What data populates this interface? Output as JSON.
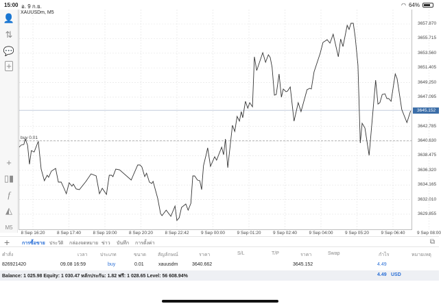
{
  "status": {
    "time": "15:00",
    "date": "อ. 9 ก.ย.",
    "battery": "64%",
    "battery_level": 0.64
  },
  "sidebar": {
    "period": "M5"
  },
  "chart": {
    "symbol": "XAUUSDm, M5",
    "current_price": "3645.152",
    "buy_label": "buy 0.01"
  },
  "chart_data": {
    "type": "line",
    "title": "XAUUSDm, M5",
    "x_unit": "minutes since 8 Sep 16:20",
    "ylim": [
      3628.5,
      3659.4
    ],
    "grid": true,
    "y_ticks": [
      "3657.870",
      "3655.715",
      "3653.560",
      "3651.405",
      "3649.250",
      "3647.095",
      "3642.785",
      "3640.630",
      "3638.475",
      "3636.320",
      "3634.165",
      "3632.010",
      "3629.855"
    ],
    "x_ticks": [
      "8 Sep 16:20",
      "8 Sep 17:40",
      "8 Sep 19:00",
      "8 Sep 20:20",
      "8 Sep 22:42",
      "9 Sep 00:00",
      "9 Sep 01:20",
      "9 Sep 02:40",
      "9 Sep 04:00",
      "9 Sep 05:20",
      "9 Sep 06:40",
      "9 Sep 08:00"
    ],
    "bid_line": 3645.152,
    "order_line": 3640.662,
    "points": [
      [
        0,
        3639.73
      ],
      [
        4,
        3640.03
      ],
      [
        10,
        3640.13
      ],
      [
        13,
        3640.94
      ],
      [
        18,
        3640.03
      ],
      [
        22,
        3637.21
      ],
      [
        26,
        3639.22
      ],
      [
        32,
        3639.02
      ],
      [
        40,
        3640.43
      ],
      [
        41,
        3640.53
      ],
      [
        47,
        3636.5
      ],
      [
        54,
        3634.79
      ],
      [
        60,
        3635.59
      ],
      [
        63,
        3635.29
      ],
      [
        69,
        3636.2
      ],
      [
        78,
        3636.6
      ],
      [
        84,
        3634.59
      ],
      [
        90,
        3634.59
      ],
      [
        96,
        3633.68
      ],
      [
        101,
        3632.87
      ],
      [
        107,
        3634.48
      ],
      [
        113,
        3633.98
      ],
      [
        116,
        3634.28
      ],
      [
        122,
        3633.58
      ],
      [
        129,
        3633.48
      ],
      [
        143,
        3634.69
      ],
      [
        154,
        3635.79
      ],
      [
        165,
        3635.49
      ],
      [
        172,
        3632.87
      ],
      [
        178,
        3633.68
      ],
      [
        187,
        3632.77
      ],
      [
        193,
        3635.59
      ],
      [
        198,
        3635.59
      ],
      [
        201,
        3635.39
      ],
      [
        207,
        3636.5
      ],
      [
        215,
        3636.4
      ],
      [
        240,
        3634.89
      ],
      [
        245,
        3635.69
      ],
      [
        254,
        3637.11
      ],
      [
        259,
        3637.11
      ],
      [
        263,
        3636.8
      ],
      [
        269,
        3635.39
      ],
      [
        273,
        3635.9
      ],
      [
        279,
        3634.59
      ],
      [
        284,
        3634.38
      ],
      [
        287,
        3634.69
      ],
      [
        297,
        3632.17
      ],
      [
        303,
        3629.95
      ],
      [
        306,
        3629.65
      ],
      [
        315,
        3630.45
      ],
      [
        325,
        3629.55
      ],
      [
        334,
        3631.06
      ],
      [
        338,
        3628.94
      ],
      [
        343,
        3629.34
      ],
      [
        348,
        3630.86
      ],
      [
        357,
        3631.36
      ],
      [
        362,
        3630.45
      ],
      [
        368,
        3631.46
      ],
      [
        372,
        3635.49
      ],
      [
        376,
        3635.49
      ],
      [
        382,
        3634.89
      ],
      [
        387,
        3634.79
      ],
      [
        391,
        3633.48
      ],
      [
        395,
        3637.0
      ],
      [
        401,
        3638.72
      ],
      [
        404,
        3639.63
      ],
      [
        410,
        3636.9
      ],
      [
        419,
        3638.31
      ],
      [
        423,
        3637.81
      ],
      [
        434,
        3639.73
      ],
      [
        438,
        3638.62
      ],
      [
        442,
        3640.94
      ],
      [
        447,
        3636.7
      ],
      [
        457,
        3642.95
      ],
      [
        462,
        3642.04
      ],
      [
        467,
        3644.26
      ],
      [
        472,
        3643.56
      ],
      [
        476,
        3644.97
      ],
      [
        479,
        3644.06
      ],
      [
        485,
        3646.48
      ],
      [
        490,
        3645.47
      ],
      [
        494,
        3646.28
      ],
      [
        500,
        3645.67
      ],
      [
        504,
        3653.03
      ],
      [
        509,
        3651.02
      ],
      [
        522,
        3653.64
      ],
      [
        528,
        3652.23
      ],
      [
        534,
        3653.33
      ],
      [
        538,
        3652.93
      ],
      [
        542,
        3651.52
      ],
      [
        547,
        3647.39
      ],
      [
        551,
        3647.49
      ],
      [
        557,
        3650.51
      ],
      [
        562,
        3647.08
      ],
      [
        566,
        3648.29
      ],
      [
        572,
        3647.89
      ],
      [
        575,
        3647.99
      ],
      [
        581,
        3648.6
      ],
      [
        589,
        3643.56
      ],
      [
        598,
        3646.28
      ],
      [
        604,
        3644.97
      ],
      [
        617,
        3648.19
      ],
      [
        623,
        3648.39
      ],
      [
        626,
        3648.29
      ],
      [
        632,
        3650.81
      ],
      [
        645,
        3653.54
      ],
      [
        651,
        3655.15
      ],
      [
        660,
        3655.55
      ],
      [
        666,
        3655.05
      ],
      [
        673,
        3656.36
      ],
      [
        684,
        3653.03
      ],
      [
        689,
        3655.65
      ],
      [
        694,
        3654.54
      ],
      [
        703,
        3657.67
      ],
      [
        707,
        3657.06
      ],
      [
        711,
        3657.97
      ],
      [
        716,
        3657.97
      ],
      [
        720,
        3656.06
      ],
      [
        726,
        3651.82
      ],
      [
        731,
        3640.33
      ],
      [
        735,
        3643.25
      ],
      [
        741,
        3642.55
      ],
      [
        750,
        3638.52
      ],
      [
        764,
        3649.6
      ],
      [
        769,
        3646.08
      ],
      [
        773,
        3646.28
      ],
      [
        778,
        3647.49
      ],
      [
        784,
        3647.59
      ],
      [
        788,
        3646.88
      ],
      [
        792,
        3646.88
      ],
      [
        797,
        3646.48
      ],
      [
        806,
        3650.51
      ],
      [
        810,
        3649.81
      ],
      [
        820,
        3645.27
      ],
      [
        831,
        3643.35
      ],
      [
        839,
        3645.07
      ]
    ]
  },
  "tabs": [
    "การซื้อขาย",
    "ประวัติ",
    "กล่องจดหมาย",
    "ข่าว",
    "บันทึก",
    "การตั้งค่า"
  ],
  "table": {
    "headers": [
      "คำสั่ง",
      "เวลา",
      "ประเภท",
      "ขนาด",
      "สัญลักษณ์",
      "ราคา",
      "S/L",
      "T/P",
      "ราคา",
      "Swap",
      "กำไร",
      "หมายเหตุ"
    ],
    "row": {
      "order": "826921420",
      "time": "09.08 16:59",
      "type": "buy",
      "volume": "0.01",
      "symbol": "xauusdm",
      "open_price": "3640.662",
      "sl": "",
      "tp": "",
      "price": "3645.152",
      "swap": "",
      "profit": "4.49",
      "comment": ""
    }
  },
  "balance": {
    "text": "Balance: 1 025.98 Equity: 1 030.47 หลักประกัน: 1.82 ฟรี: 1 028.65 Level: 56 608.94%",
    "profit": "4.49",
    "currency": "USD"
  },
  "colors": {
    "accent": "#2a6fd6",
    "price_tag": "#3c6ea8"
  }
}
